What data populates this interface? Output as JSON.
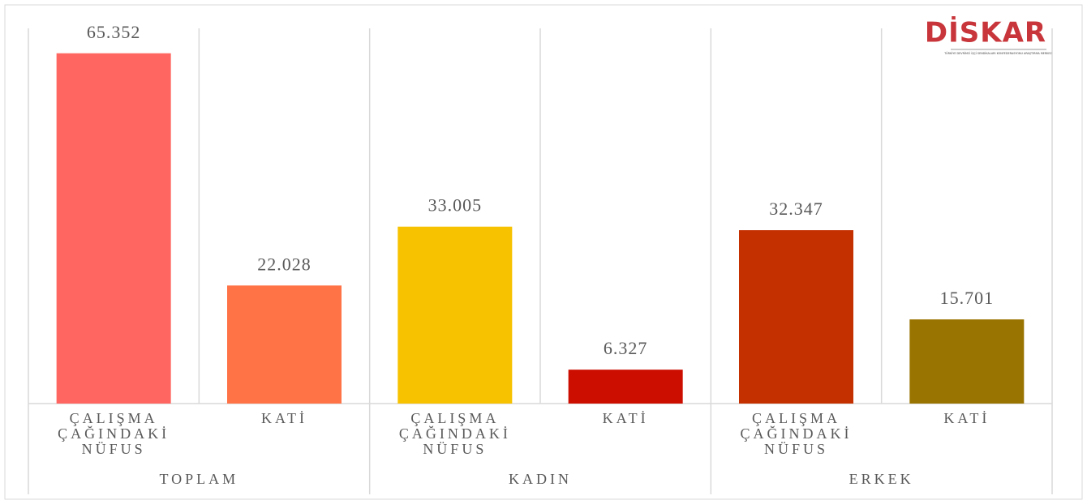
{
  "chart_data": {
    "type": "bar",
    "logo": {
      "text": "DİSKAR",
      "subtitle": "TÜRKİYE DEVRİMCİ İŞÇİ SENDİKALARI KONFEDERASYONU ARAŞTIRMA MERKEZİ"
    },
    "groups": [
      "TOPLAM",
      "KADIN",
      "ERKEK"
    ],
    "categories": [
      "ÇALIŞMA ÇAĞINDAKİ NÜFUS",
      "KATİ",
      "ÇALIŞMA ÇAĞINDAKİ NÜFUS",
      "KATİ",
      "ÇALIŞMA ÇAĞINDAKİ NÜFUS",
      "KATİ"
    ],
    "values": [
      65.352,
      22.028,
      33.005,
      6.327,
      32.347,
      15.701
    ],
    "colors": [
      "#ff6661",
      "#ff7347",
      "#f7c200",
      "#cc0e00",
      "#c43000",
      "#997400"
    ],
    "ylim": [
      0,
      70
    ]
  }
}
